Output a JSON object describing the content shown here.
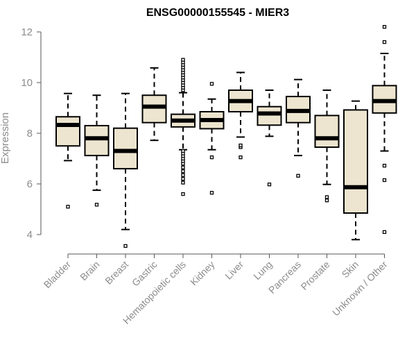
{
  "chart_data": {
    "type": "box",
    "title": "ENSG00000155545 - MIER3",
    "xlabel": "",
    "ylabel": "Expression",
    "ylim": [
      3.4,
      12.4
    ],
    "yticks": [
      4,
      6,
      8,
      10,
      12
    ],
    "grid": false,
    "colors": {
      "box_fill": "#ede5cf",
      "stroke": "#000000",
      "text": "#8c8c8c"
    },
    "categories": [
      "Bladder",
      "Brain",
      "Breast",
      "Gastric",
      "Hematopoietic cells",
      "Kidney",
      "Liver",
      "Lung",
      "Pancreas",
      "Prostate",
      "Skin",
      "Unknown / Other"
    ],
    "boxes": [
      {
        "category": "Bladder",
        "whisker_low": 6.92,
        "q1": 7.5,
        "median": 8.33,
        "q3": 8.65,
        "whisker_high": 9.57,
        "outliers": [
          5.1
        ]
      },
      {
        "category": "Brain",
        "whisker_low": 5.75,
        "q1": 7.12,
        "median": 7.8,
        "q3": 8.3,
        "whisker_high": 9.5,
        "outliers": [
          5.18
        ]
      },
      {
        "category": "Breast",
        "whisker_low": 4.2,
        "q1": 6.6,
        "median": 7.3,
        "q3": 8.2,
        "whisker_high": 9.57,
        "outliers": [
          3.55
        ]
      },
      {
        "category": "Gastric",
        "whisker_low": 7.72,
        "q1": 8.42,
        "median": 9.05,
        "q3": 9.5,
        "whisker_high": 10.58,
        "outliers": []
      },
      {
        "category": "Hematopoietic cells",
        "whisker_low": 7.35,
        "q1": 8.25,
        "median": 8.5,
        "q3": 8.75,
        "whisker_high": 9.6,
        "outliers": [
          5.6,
          6.05,
          6.2,
          6.35,
          6.5,
          6.65,
          6.8,
          6.9,
          7.0,
          7.1,
          7.2,
          7.3,
          9.7,
          9.8,
          9.9,
          10.0,
          10.1,
          10.2,
          10.3,
          10.4,
          10.5,
          10.6,
          10.7,
          10.8,
          10.9
        ]
      },
      {
        "category": "Kidney",
        "whisker_low": 7.35,
        "q1": 8.18,
        "median": 8.52,
        "q3": 8.85,
        "whisker_high": 9.35,
        "outliers": [
          5.65,
          7.05,
          9.95
        ]
      },
      {
        "category": "Liver",
        "whisker_low": 7.85,
        "q1": 8.85,
        "median": 9.27,
        "q3": 9.7,
        "whisker_high": 10.4,
        "outliers": [
          7.05,
          7.45,
          7.52
        ]
      },
      {
        "category": "Lung",
        "whisker_low": 7.88,
        "q1": 8.32,
        "median": 8.78,
        "q3": 9.05,
        "whisker_high": 9.7,
        "outliers": [
          5.98
        ]
      },
      {
        "category": "Pancreas",
        "whisker_low": 7.12,
        "q1": 8.42,
        "median": 8.88,
        "q3": 9.45,
        "whisker_high": 10.12,
        "outliers": [
          6.32
        ]
      },
      {
        "category": "Prostate",
        "whisker_low": 5.98,
        "q1": 7.45,
        "median": 7.8,
        "q3": 8.7,
        "whisker_high": 9.7,
        "outliers": [
          5.35,
          5.48
        ]
      },
      {
        "category": "Skin",
        "whisker_low": 3.8,
        "q1": 4.85,
        "median": 5.87,
        "q3": 8.92,
        "whisker_high": 9.27,
        "outliers": []
      },
      {
        "category": "Unknown / Other",
        "whisker_low": 7.3,
        "q1": 8.8,
        "median": 9.27,
        "q3": 9.88,
        "whisker_high": 11.15,
        "outliers": [
          4.1,
          6.15,
          6.72,
          11.6,
          12.2
        ]
      }
    ]
  }
}
